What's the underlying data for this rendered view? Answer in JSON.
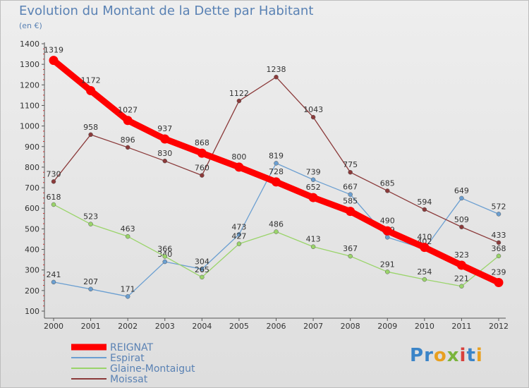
{
  "title": "Evolution du Montant de la Dette par Habitant",
  "subtitle": "(en €)",
  "logo": {
    "text": "Proxiti",
    "colors": [
      "#3a84c8",
      "#3a84c8",
      "#e8a020",
      "#7ab43c",
      "#d8403c",
      "#3a84c8",
      "#e8a020"
    ]
  },
  "chart_data": {
    "type": "line",
    "title": "Evolution du Montant de la Dette par Habitant",
    "subtitle": "(en €)",
    "x": [
      2000,
      2001,
      2002,
      2003,
      2004,
      2005,
      2006,
      2007,
      2008,
      2009,
      2010,
      2011,
      2012
    ],
    "ylim": [
      100,
      1400
    ],
    "yticks": [
      100,
      200,
      300,
      400,
      500,
      600,
      700,
      800,
      900,
      1000,
      1100,
      1200,
      1300,
      1400
    ],
    "grid": false,
    "legend_position": "bottom-left",
    "series": [
      {
        "name": "REIGNAT",
        "color": "#ff0000",
        "emphasis": true,
        "values": [
          1319,
          1172,
          1027,
          937,
          868,
          800,
          728,
          652,
          585,
          490,
          410,
          323,
          239
        ]
      },
      {
        "name": "Espirat",
        "color": "#6b9fd1",
        "values": [
          241,
          207,
          171,
          340,
          304,
          473,
          819,
          739,
          667,
          459,
          402,
          649,
          572
        ]
      },
      {
        "name": "Glaine-Montaigut",
        "color": "#9ad46a",
        "values": [
          618,
          523,
          463,
          366,
          265,
          427,
          486,
          413,
          367,
          291,
          254,
          221,
          368
        ]
      },
      {
        "name": "Moissat",
        "color": "#8b3a3a",
        "values": [
          730,
          958,
          896,
          830,
          760,
          1122,
          1238,
          1043,
          775,
          685,
          594,
          509,
          433
        ]
      }
    ]
  }
}
